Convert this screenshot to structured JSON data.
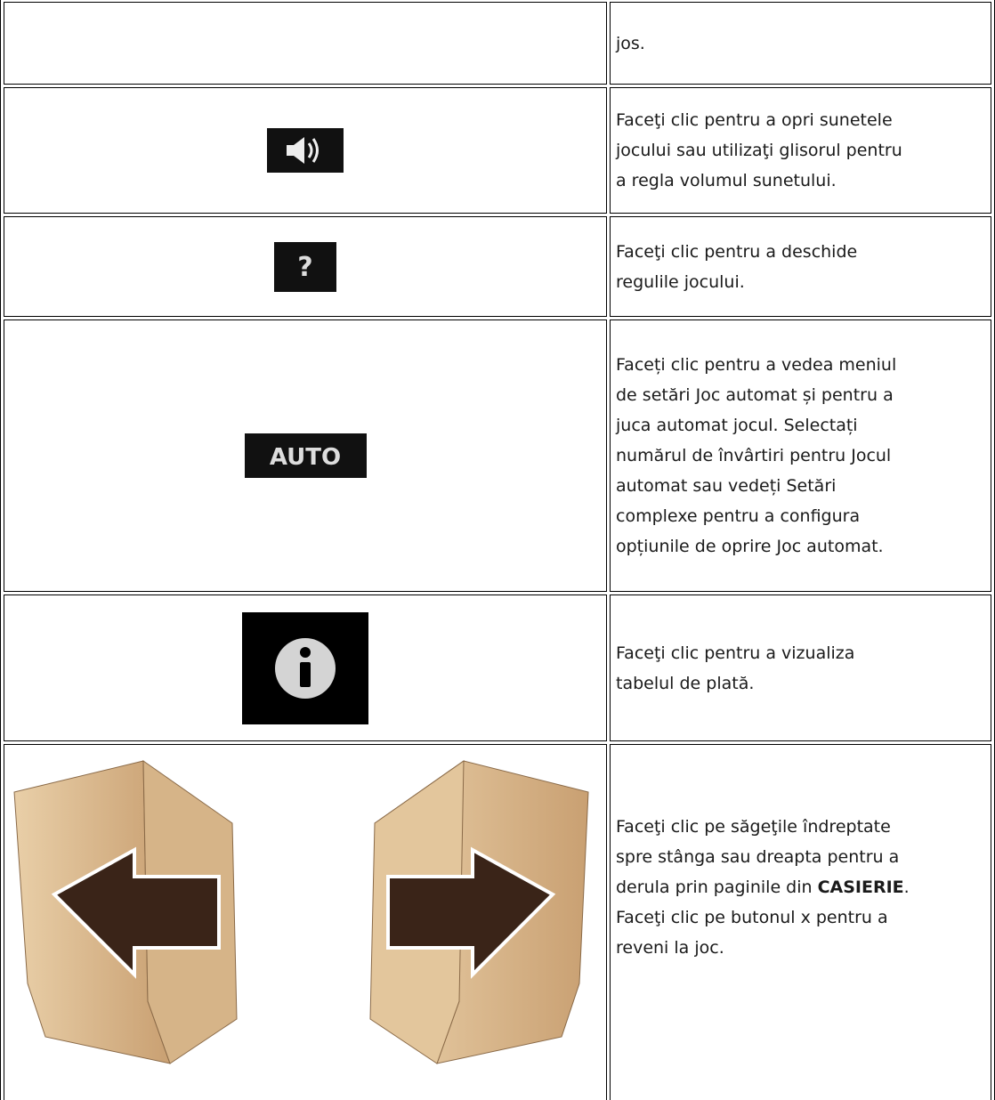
{
  "table": {
    "rows": [
      {
        "lines": [
          "jos."
        ]
      },
      {
        "lines": [
          "Faceţi clic pentru a opri sunetele",
          "jocului sau utilizaţi glisorul pentru",
          "a regla volumul sunetului."
        ]
      },
      {
        "icon_label": "?",
        "lines": [
          "Faceţi clic pentru a deschide",
          "regulile jocului."
        ]
      },
      {
        "icon_label": "AUTO",
        "lines": [
          "Faceți clic pentru a vedea meniul",
          "de setări Joc automat și pentru a",
          "juca automat jocul. Selectați",
          "numărul de învârtiri pentru Jocul",
          "automat sau vedeți Setări",
          "complexe pentru a configura",
          "opțiunile de oprire Joc automat."
        ]
      },
      {
        "lines": [
          "Faceţi clic pentru a vizualiza",
          "tabelul de plată."
        ]
      },
      {
        "lines": [
          "Faceţi clic pe săgeţile îndreptate",
          "spre stânga sau dreapta pentru a",
          [
            {
              "text": "derula prin paginile din "
            },
            {
              "text": "CASIERIE",
              "bold": true
            },
            {
              "text": "."
            }
          ],
          "Faceţi clic pe butonul x pentru a",
          "reveni la joc."
        ]
      }
    ]
  }
}
